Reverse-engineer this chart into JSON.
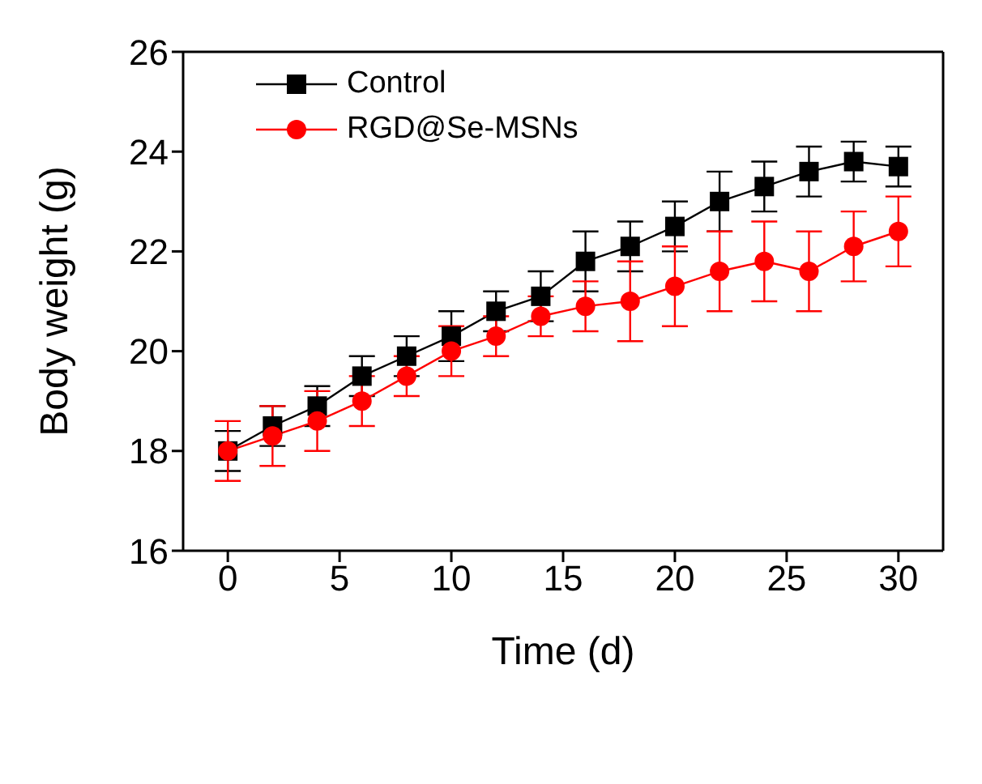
{
  "chart_data": {
    "type": "line",
    "xlabel": "Time (d)",
    "ylabel": "Body weight (g)",
    "x": [
      0,
      2,
      4,
      6,
      8,
      10,
      12,
      14,
      16,
      18,
      20,
      22,
      24,
      26,
      28,
      30
    ],
    "series": [
      {
        "name": "Control",
        "color": "#000000",
        "marker": "square",
        "values": [
          18,
          18.5,
          18.9,
          19.5,
          19.9,
          20.3,
          20.8,
          21.1,
          21.8,
          22.1,
          22.5,
          23.0,
          23.3,
          23.6,
          23.8,
          23.7
        ],
        "errors": [
          0.4,
          0.4,
          0.4,
          0.4,
          0.4,
          0.5,
          0.4,
          0.5,
          0.6,
          0.5,
          0.5,
          0.6,
          0.5,
          0.5,
          0.4,
          0.4
        ]
      },
      {
        "name": "RGD@Se-MSNs",
        "color": "#ff0000",
        "marker": "circle",
        "values": [
          18,
          18.3,
          18.6,
          19.0,
          19.5,
          20.0,
          20.3,
          20.7,
          20.9,
          21.0,
          21.3,
          21.6,
          21.8,
          21.6,
          22.1,
          22.4
        ],
        "errors": [
          0.6,
          0.6,
          0.6,
          0.5,
          0.4,
          0.5,
          0.4,
          0.4,
          0.5,
          0.8,
          0.8,
          0.8,
          0.8,
          0.8,
          0.7,
          0.7
        ]
      }
    ],
    "xlim": [
      -2,
      32
    ],
    "xticks": [
      0,
      5,
      10,
      15,
      20,
      25,
      30
    ],
    "ylim": [
      16,
      26
    ],
    "yticks": [
      16,
      18,
      20,
      22,
      24,
      26
    ],
    "grid": false,
    "legend": "top left"
  }
}
